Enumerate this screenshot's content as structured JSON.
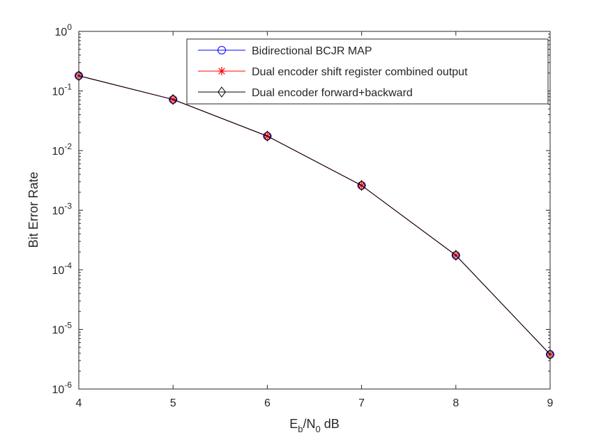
{
  "chart_data": {
    "type": "line",
    "title": "",
    "xlabel_main": "E",
    "xlabel_sub1": "b",
    "xlabel_mid": "/N",
    "xlabel_sub2": "0",
    "xlabel_tail": " dB",
    "ylabel": "Bit Error Rate",
    "x": [
      4,
      5,
      6,
      7,
      8,
      9
    ],
    "xlim": [
      4,
      9
    ],
    "ylim": [
      1e-06,
      1
    ],
    "yscale": "log",
    "x_ticks": [
      "4",
      "5",
      "6",
      "7",
      "8",
      "9"
    ],
    "y_tick_base": "10",
    "y_tick_exponents": [
      "0",
      "-1",
      "-2",
      "-3",
      "-4",
      "-5",
      "-6"
    ],
    "legend_position": "top-right",
    "series": [
      {
        "name": "Bidirectional BCJR MAP",
        "color": "#0000ff",
        "marker": "circle",
        "values": [
          0.18,
          0.072,
          0.0175,
          0.0026,
          0.000175,
          3.8e-06
        ]
      },
      {
        "name": "Dual encoder shift register combined output",
        "color": "#ff0000",
        "marker": "asterisk",
        "values": [
          0.18,
          0.072,
          0.0175,
          0.0026,
          0.000175,
          3.8e-06
        ]
      },
      {
        "name": "Dual encoder forward+backward",
        "color": "#000000",
        "marker": "diamond",
        "values": [
          0.18,
          0.072,
          0.0175,
          0.0026,
          0.000175,
          3.8e-06
        ]
      }
    ]
  }
}
